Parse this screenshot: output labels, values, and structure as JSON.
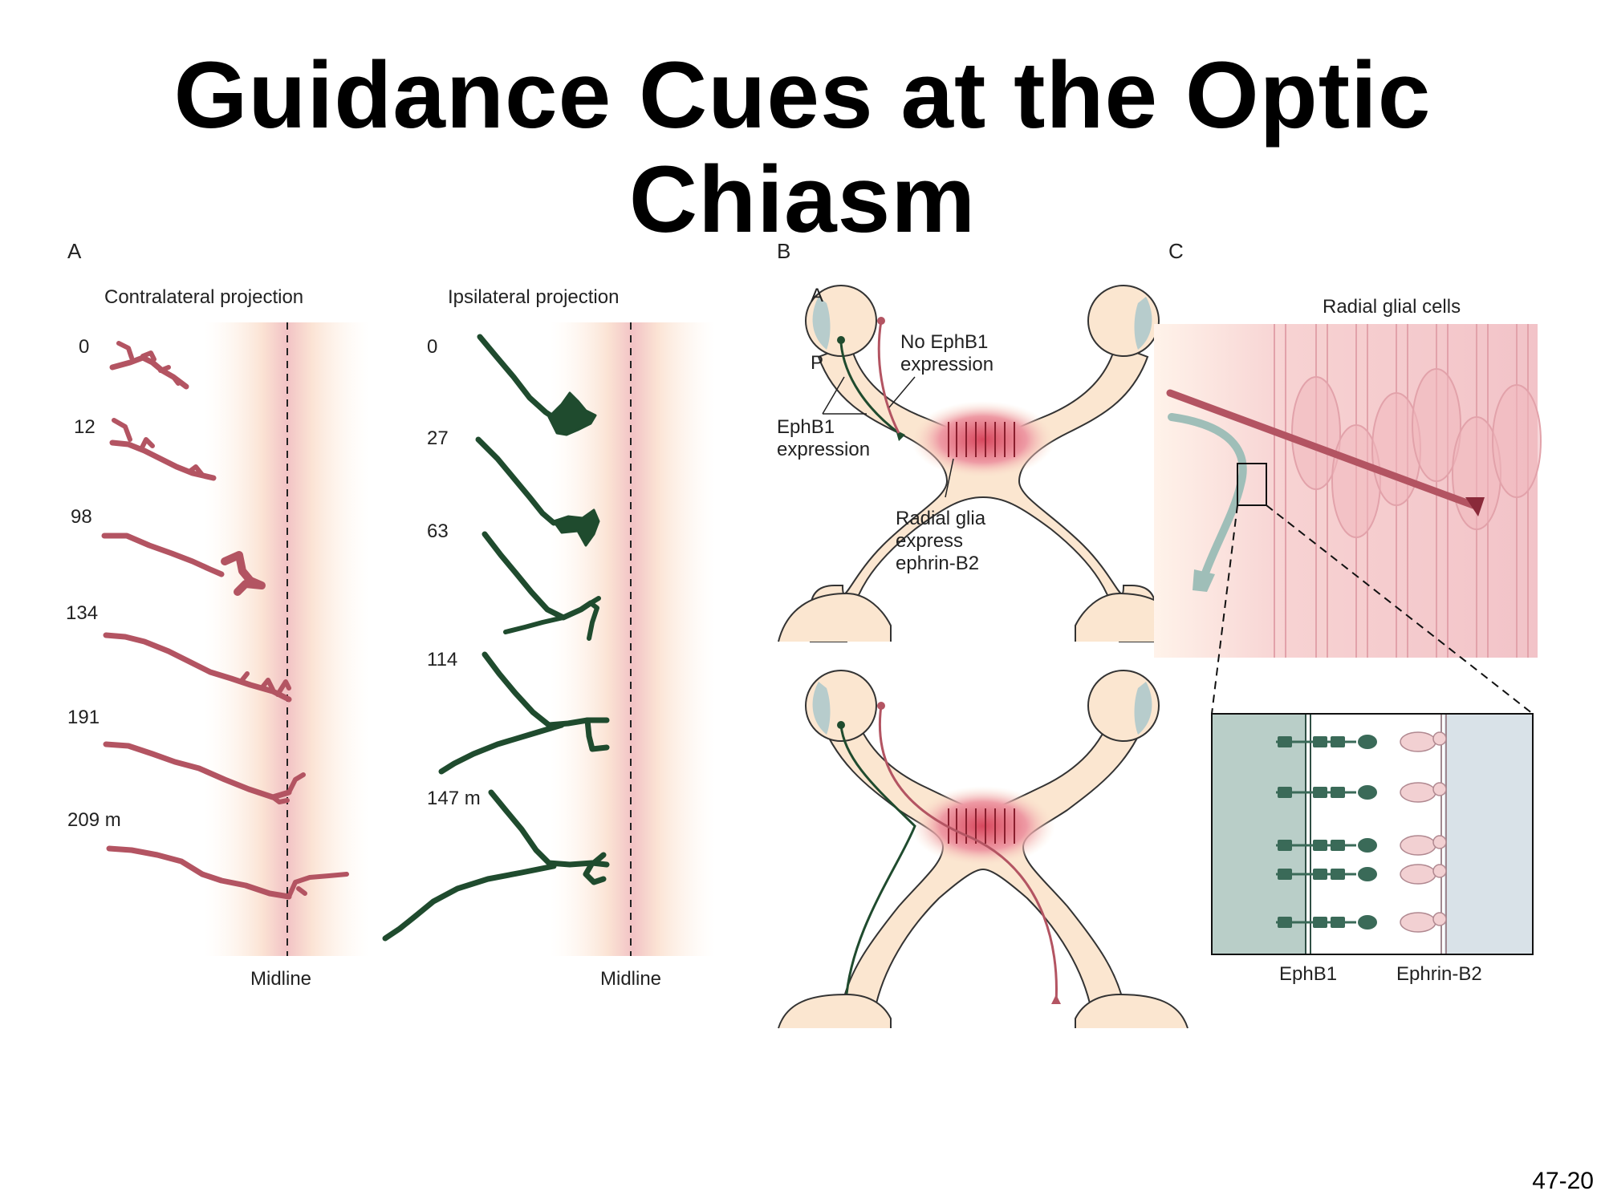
{
  "title": "Guidance Cues at the Optic Chiasm",
  "slide_number": "47-20",
  "colors": {
    "contralateral_axon": "#b35462",
    "ipsilateral_axon": "#1f4b2e",
    "midline_band": "#f2c3c5",
    "tissue_fill": "#fbe6d0",
    "ephb1_receptor": "#3a6a58",
    "ephrin_b2_ligand": "#f2d0d2",
    "left_cell_fill": "#b9cec8",
    "right_cell_fill": "#d9e2e8"
  },
  "panel_a": {
    "letter": "A",
    "contralateral": {
      "heading": "Contralateral projection",
      "timepoints": [
        "0",
        "12",
        "98",
        "134",
        "191",
        "209 m"
      ],
      "midline_label": "Midline"
    },
    "ipsilateral": {
      "heading": "Ipsilateral projection",
      "timepoints": [
        "0",
        "27",
        "63",
        "114",
        "147 m"
      ],
      "midline_label": "Midline"
    }
  },
  "panel_b": {
    "letter": "B",
    "label_a": "A",
    "label_p": "P",
    "no_ephb1": [
      "No  EphB1",
      "expression"
    ],
    "ephb1": [
      "EphB1",
      "expression"
    ],
    "radial_glia": [
      "Radial glia",
      "express",
      "ephrin-B2"
    ]
  },
  "panel_c": {
    "letter": "C",
    "radial_glial_label": "Radial glial cells",
    "ephb1_label": "EphB1",
    "ephrin_b2_label": "Ephrin-B2"
  }
}
